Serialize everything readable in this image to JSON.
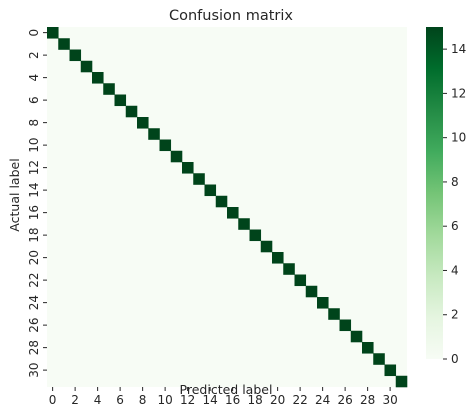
{
  "chart_data": {
    "type": "heatmap",
    "title": "Confusion matrix",
    "xlabel": "Predicted label",
    "ylabel": "Actual label",
    "n_classes": 32,
    "x_tick_labels": [
      "0",
      "2",
      "4",
      "6",
      "8",
      "10",
      "12",
      "14",
      "16",
      "18",
      "20",
      "22",
      "24",
      "26",
      "28",
      "30"
    ],
    "y_tick_labels": [
      "0",
      "2",
      "4",
      "6",
      "8",
      "10",
      "12",
      "14",
      "16",
      "18",
      "20",
      "22",
      "24",
      "26",
      "28",
      "30"
    ],
    "diagonal_values": [
      15,
      15,
      15,
      15,
      15,
      15,
      15,
      15,
      15,
      15,
      15,
      15,
      15,
      15,
      15,
      15,
      15,
      15,
      15,
      15,
      15,
      15,
      15,
      15,
      15,
      15,
      15,
      15,
      15,
      15,
      15,
      15
    ],
    "off_diagonal_value": 0,
    "colormap": "Greens",
    "color_low": "#f7fcf5",
    "color_high": "#00441b",
    "vmin": 0,
    "vmax": 15,
    "colorbar_ticks": [
      "0",
      "2",
      "4",
      "6",
      "8",
      "10",
      "12",
      "14"
    ],
    "grid": false
  }
}
